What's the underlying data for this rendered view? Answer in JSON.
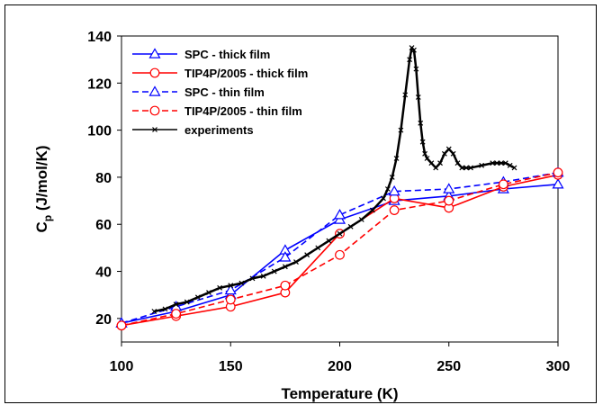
{
  "chart_data": {
    "type": "line",
    "title": "",
    "xlabel": "Temperature (K)",
    "ylabel_main": "C",
    "ylabel_sub": "p",
    "ylabel_rest": " (J/mol/K)",
    "xlim": [
      100,
      300
    ],
    "ylim": [
      10,
      140
    ],
    "xticks": [
      100,
      150,
      200,
      250,
      300
    ],
    "yticks": [
      20,
      40,
      60,
      80,
      100,
      120,
      140
    ],
    "grid": false,
    "legend_position": "top-left",
    "series": [
      {
        "name": "SPC - thick film",
        "color": "#0000ff",
        "dash": "solid",
        "marker": "triangle",
        "x": [
          100,
          125,
          150,
          175,
          200,
          225,
          250,
          275,
          300
        ],
        "y": [
          18,
          23,
          30,
          49,
          62,
          70,
          72,
          75,
          77
        ]
      },
      {
        "name": "TIP4P/2005 - thick film",
        "color": "#ff0000",
        "dash": "solid",
        "marker": "circle",
        "x": [
          100,
          125,
          150,
          175,
          200,
          225,
          250,
          275,
          300
        ],
        "y": [
          17,
          21,
          25,
          31,
          56,
          71,
          67,
          76,
          81
        ]
      },
      {
        "name": "SPC - thin film",
        "color": "#0000ff",
        "dash": "dashed",
        "marker": "triangle",
        "x": [
          100,
          125,
          150,
          175,
          200,
          225,
          250,
          275,
          300
        ],
        "y": [
          18,
          25,
          32,
          46,
          64,
          74,
          75,
          78,
          82
        ]
      },
      {
        "name": "TIP4P/2005 - thin film",
        "color": "#ff0000",
        "dash": "dashed",
        "marker": "circle",
        "x": [
          100,
          125,
          150,
          175,
          200,
          225,
          250,
          275,
          300
        ],
        "y": [
          17,
          22,
          28,
          34,
          47,
          66,
          70,
          77,
          82
        ]
      },
      {
        "name": "experiments",
        "color": "#000000",
        "dash": "solid",
        "marker": "dense",
        "x": [
          115,
          120,
          125,
          130,
          135,
          140,
          145,
          150,
          155,
          160,
          165,
          170,
          175,
          180,
          185,
          190,
          195,
          200,
          205,
          210,
          215,
          220,
          222,
          224,
          226,
          228,
          230,
          232,
          233,
          234,
          235,
          236,
          237,
          238,
          239,
          240,
          242,
          244,
          246,
          248,
          250,
          252,
          254,
          256,
          258,
          260,
          265,
          270,
          272,
          274,
          276,
          278,
          280
        ],
        "y": [
          23,
          24,
          26,
          27,
          29,
          31,
          33,
          34,
          35,
          37,
          38,
          40,
          42,
          44,
          47,
          50,
          53,
          56,
          59,
          62,
          66,
          71,
          75,
          80,
          88,
          100,
          115,
          130,
          135,
          134,
          126,
          114,
          103,
          95,
          90,
          88,
          86,
          84,
          86,
          90,
          92,
          90,
          86,
          84,
          84,
          84,
          85,
          86,
          86,
          86,
          86,
          85,
          84
        ]
      }
    ]
  }
}
